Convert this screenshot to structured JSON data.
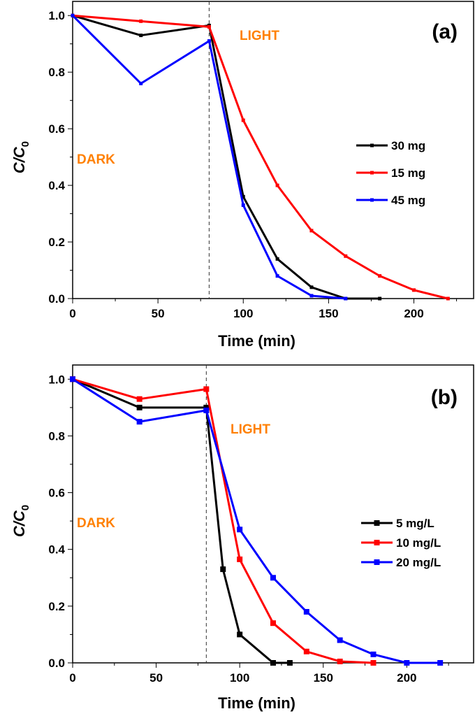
{
  "chart_data": [
    {
      "type": "line",
      "panel_label": "(a)",
      "xlabel": "Time (min)",
      "ylabel_main": "C/C",
      "ylabel_sub": "0",
      "xlim": [
        0,
        235
      ],
      "ylim": [
        0,
        1.05
      ],
      "xticks": [
        0,
        50,
        100,
        150,
        200
      ],
      "yticks": [
        0.0,
        0.2,
        0.4,
        0.6,
        0.8,
        1.0
      ],
      "ytick_labels": [
        "0.0",
        "0.2",
        "0.4",
        "0.6",
        "0.8",
        "1.0"
      ],
      "divider_x": 80,
      "annotations": [
        {
          "text": "DARK",
          "x": 5,
          "y": 0.49
        },
        {
          "text": "LIGHT",
          "x": 91,
          "y": 0.95
        }
      ],
      "legend_position": "right",
      "series": [
        {
          "name": "30 mg",
          "color": "#000000",
          "x": [
            0,
            40,
            80,
            100,
            120,
            140,
            160,
            180
          ],
          "y": [
            1.0,
            0.93,
            0.965,
            0.36,
            0.14,
            0.04,
            0.0,
            0.0
          ]
        },
        {
          "name": "15 mg",
          "color": "#ff0000",
          "x": [
            0,
            40,
            80,
            100,
            120,
            140,
            160,
            180,
            200,
            220
          ],
          "y": [
            1.0,
            0.98,
            0.96,
            0.63,
            0.4,
            0.24,
            0.15,
            0.08,
            0.03,
            0.0
          ]
        },
        {
          "name": "45 mg",
          "color": "#0000ff",
          "x": [
            0,
            40,
            80,
            100,
            120,
            140,
            160
          ],
          "y": [
            1.0,
            0.76,
            0.91,
            0.33,
            0.08,
            0.01,
            0.0
          ]
        }
      ]
    },
    {
      "type": "line",
      "panel_label": "(b)",
      "xlabel": "Time (min)",
      "ylabel_main": "C/C",
      "ylabel_sub": "0",
      "xlim": [
        0,
        240
      ],
      "ylim": [
        0,
        1.05
      ],
      "xticks": [
        0,
        50,
        100,
        150,
        200
      ],
      "yticks": [
        0.0,
        0.2,
        0.4,
        0.6,
        0.8,
        1.0
      ],
      "ytick_labels": [
        "0.0",
        "0.2",
        "0.4",
        "0.6",
        "0.8",
        "1.0"
      ],
      "divider_x": 80,
      "annotations": [
        {
          "text": "DARK",
          "x": 5,
          "y": 0.49
        },
        {
          "text": "LIGHT",
          "x": 93,
          "y": 0.82
        }
      ],
      "legend_position": "right",
      "series": [
        {
          "name": "5 mg/L",
          "color": "#000000",
          "x": [
            0,
            40,
            80,
            90,
            100,
            120,
            130
          ],
          "y": [
            1.0,
            0.9,
            0.9,
            0.33,
            0.1,
            0.0,
            0.0
          ]
        },
        {
          "name": "10 mg/L",
          "color": "#ff0000",
          "x": [
            0,
            40,
            80,
            100,
            120,
            140,
            160,
            180
          ],
          "y": [
            1.0,
            0.93,
            0.965,
            0.365,
            0.14,
            0.04,
            0.005,
            0.0
          ]
        },
        {
          "name": "20 mg/L",
          "color": "#0000ff",
          "x": [
            0,
            40,
            80,
            100,
            120,
            140,
            160,
            180,
            200,
            220
          ],
          "y": [
            1.0,
            0.85,
            0.89,
            0.47,
            0.3,
            0.18,
            0.08,
            0.03,
            0.0,
            0.0
          ]
        }
      ]
    }
  ]
}
